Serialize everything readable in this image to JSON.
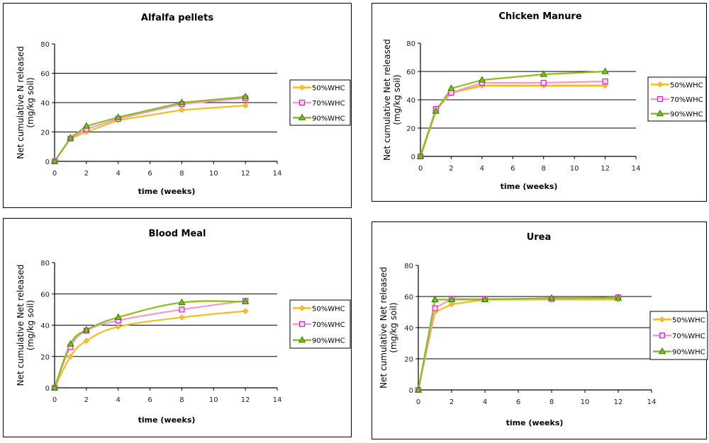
{
  "colors": {
    "50%WHC": "#f5bd1f",
    "70%WHC": "#f49ac8",
    "90%WHC": "#8cbd1d",
    "marker_50": "#f5a623",
    "marker_70": "#e020c0",
    "marker_90": "#2e8b00"
  },
  "chart_data": [
    {
      "type": "line",
      "title": "Alfalfa pellets",
      "xlabel": "time (weeks)",
      "ylabel": [
        "Net cumulative N released",
        "(mg/kg soil)"
      ],
      "xlim": [
        0,
        14
      ],
      "ylim": [
        0,
        80
      ],
      "xticks": [
        "0",
        "2",
        "4",
        "6",
        "8",
        "10",
        "12",
        "14"
      ],
      "yticks": [
        "0",
        "20",
        "40",
        "60",
        "80"
      ],
      "grid": "horizontal",
      "legend_position": "right",
      "x": [
        0,
        1,
        2,
        4,
        8,
        12
      ],
      "series": [
        {
          "name": "50%WHC",
          "marker": "diamond",
          "values": [
            0,
            15.5,
            20,
            28,
            35,
            38
          ]
        },
        {
          "name": "70%WHC",
          "marker": "square",
          "values": [
            0,
            15.5,
            22,
            29,
            39,
            43
          ]
        },
        {
          "name": "90%WHC",
          "marker": "triangle",
          "values": [
            0,
            16,
            24,
            30,
            40,
            44
          ]
        }
      ]
    },
    {
      "type": "line",
      "title": "Chicken Manure",
      "xlabel": "time (weeks)",
      "ylabel": [
        "Net cumulative Net released",
        "(mg/kg soil)"
      ],
      "xlim": [
        0,
        14
      ],
      "ylim": [
        0,
        80
      ],
      "xticks": [
        "0",
        "2",
        "4",
        "6",
        "8",
        "10",
        "12",
        "14"
      ],
      "yticks": [
        "0",
        "20",
        "40",
        "60",
        "80"
      ],
      "grid": "horizontal",
      "legend_position": "right",
      "x": [
        0,
        1,
        2,
        4,
        8,
        12
      ],
      "series": [
        {
          "name": "50%WHC",
          "marker": "diamond",
          "values": [
            0,
            33,
            45,
            50,
            50,
            50
          ]
        },
        {
          "name": "70%WHC",
          "marker": "square",
          "values": [
            0,
            33.5,
            45,
            52,
            52,
            53
          ]
        },
        {
          "name": "90%WHC",
          "marker": "triangle",
          "values": [
            0,
            32,
            48,
            54,
            58,
            60
          ]
        }
      ]
    },
    {
      "type": "line",
      "title": "Blood Meal",
      "xlabel": "time (weeks)",
      "ylabel": [
        "Net cumulative Net released",
        "(mg/kg soil)"
      ],
      "xlim": [
        0,
        14
      ],
      "ylim": [
        0,
        80
      ],
      "xticks": [
        "0",
        "2",
        "4",
        "6",
        "8",
        "10",
        "12",
        "14"
      ],
      "yticks": [
        "0",
        "20",
        "40",
        "60",
        "80"
      ],
      "grid": "horizontal",
      "legend_position": "right",
      "smooth": true,
      "x": [
        0,
        1,
        2,
        4,
        8,
        12
      ],
      "series": [
        {
          "name": "50%WHC",
          "marker": "diamond",
          "values": [
            0,
            20,
            30,
            39,
            45,
            49
          ]
        },
        {
          "name": "70%WHC",
          "marker": "square",
          "values": [
            0,
            26,
            36.5,
            43,
            50,
            55.5
          ]
        },
        {
          "name": "90%WHC",
          "marker": "triangle",
          "values": [
            0,
            28,
            37,
            45,
            54.5,
            55
          ]
        }
      ]
    },
    {
      "type": "line",
      "title": "Urea",
      "xlabel": "time (weeks)",
      "ylabel": [
        "Net cumulative Net released",
        "(mg/kg soil)"
      ],
      "xlim": [
        0,
        14
      ],
      "ylim": [
        0,
        80
      ],
      "xticks": [
        "0",
        "2",
        "4",
        "6",
        "8",
        "10",
        "12",
        "14"
      ],
      "yticks": [
        "0",
        "20",
        "40",
        "60",
        "80"
      ],
      "grid": "horizontal",
      "legend_position": "right",
      "x": [
        0,
        1,
        2,
        4,
        8,
        12
      ],
      "series": [
        {
          "name": "50%WHC",
          "marker": "diamond",
          "values": [
            0,
            50,
            55,
            58,
            58,
            58
          ]
        },
        {
          "name": "70%WHC",
          "marker": "square",
          "values": [
            0,
            52.5,
            58.5,
            58.5,
            58.5,
            59.5
          ]
        },
        {
          "name": "90%WHC",
          "marker": "triangle",
          "values": [
            0,
            58,
            58,
            58,
            59,
            59
          ]
        }
      ]
    }
  ]
}
